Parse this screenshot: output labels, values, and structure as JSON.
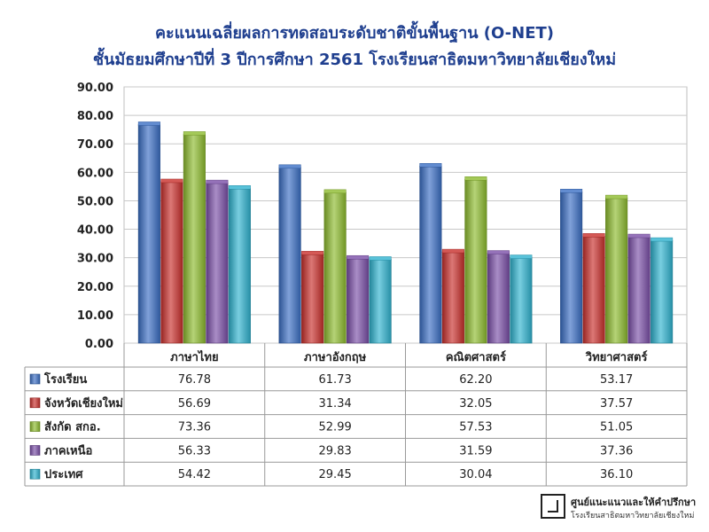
{
  "title_line1": "คะแนนเฉลี่ยผลการทดสอบระดับชาติขั้นพื้นฐาน (O-NET)",
  "title_line2": "ชั้นมัธยมศึกษาปีที่ 3 ปีการศึกษา 2561 โรงเรียนสาธิตมหาวิทยาลัยเชียงใหม่",
  "footer_line1": "ศูนย์แนะแนวและให้คำปรึกษา",
  "footer_line2": "โรงเรียนสาธิตมหาวิทยาลัยเชียงใหม่",
  "chart_data": {
    "type": "bar",
    "categories": [
      "ภาษาไทย",
      "ภาษาอังกฤษ",
      "คณิตศาสตร์",
      "วิทยาศาสตร์"
    ],
    "ylim": [
      0,
      90
    ],
    "yticks": [
      "0.00",
      "10.00",
      "20.00",
      "30.00",
      "40.00",
      "50.00",
      "60.00",
      "70.00",
      "80.00",
      "90.00"
    ],
    "grid": true,
    "legend": "data-table",
    "series": [
      {
        "name": "โรงเรียน",
        "color": "#3b6fc4",
        "values": [
          76.78,
          61.73,
          62.2,
          53.17
        ],
        "labels": [
          "76.78",
          "61.73",
          "62.20",
          "53.17"
        ]
      },
      {
        "name": "จังหวัดเชียงใหม่",
        "color": "#c9302c",
        "values": [
          56.69,
          31.34,
          32.05,
          37.57
        ],
        "labels": [
          "56.69",
          "31.34",
          "32.05",
          "37.57"
        ]
      },
      {
        "name": "สังกัด สกอ.",
        "color": "#8dbb2e",
        "values": [
          73.36,
          52.99,
          57.53,
          51.05
        ],
        "labels": [
          "73.36",
          "52.99",
          "57.53",
          "51.05"
        ]
      },
      {
        "name": "ภาคเหนือ",
        "color": "#7b4fa8",
        "values": [
          56.33,
          29.83,
          31.59,
          37.36
        ],
        "labels": [
          "56.33",
          "29.83",
          "31.59",
          "37.36"
        ]
      },
      {
        "name": "ประเทศ",
        "color": "#2fb3cf",
        "values": [
          54.42,
          29.45,
          30.04,
          36.1
        ],
        "labels": [
          "54.42",
          "29.45",
          "30.04",
          "36.10"
        ]
      }
    ]
  }
}
